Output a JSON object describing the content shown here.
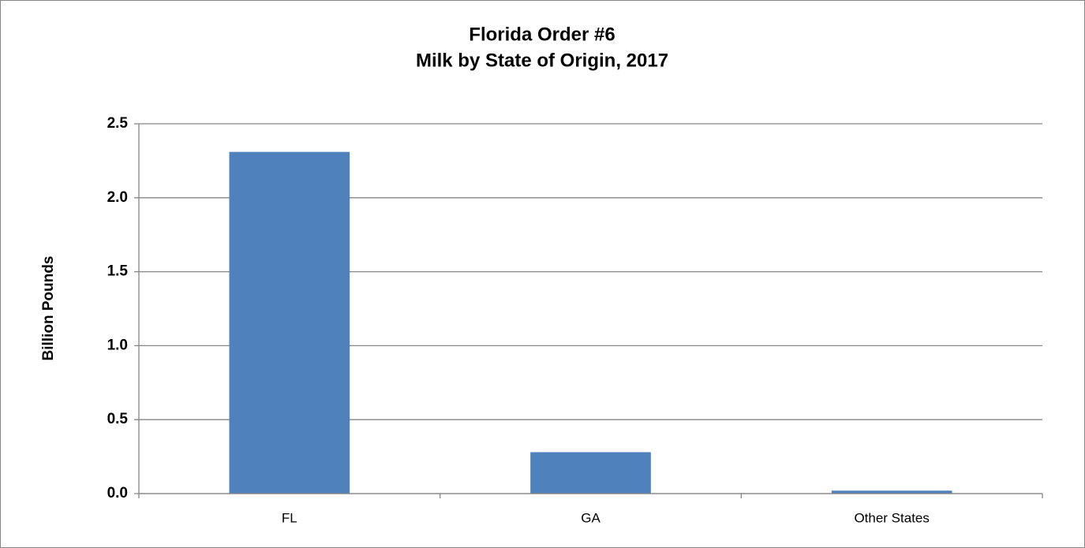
{
  "chart_data": {
    "type": "bar",
    "title": [
      "Florida Order #6",
      "Milk by State of Origin, 2017"
    ],
    "y_label": "Billion Pounds",
    "categories": [
      "FL",
      "GA",
      "Other States"
    ],
    "values": [
      2.31,
      0.28,
      0.02
    ],
    "color": "#4f81bd",
    "ylim": [
      0,
      2.5
    ],
    "yticks": [
      {
        "value": 0,
        "label": "0.0"
      },
      0.5,
      {
        "value": 1,
        "label": "1.0"
      },
      1.5,
      {
        "value": 2,
        "label": "2.0"
      },
      2.5
    ],
    "grid": true
  }
}
